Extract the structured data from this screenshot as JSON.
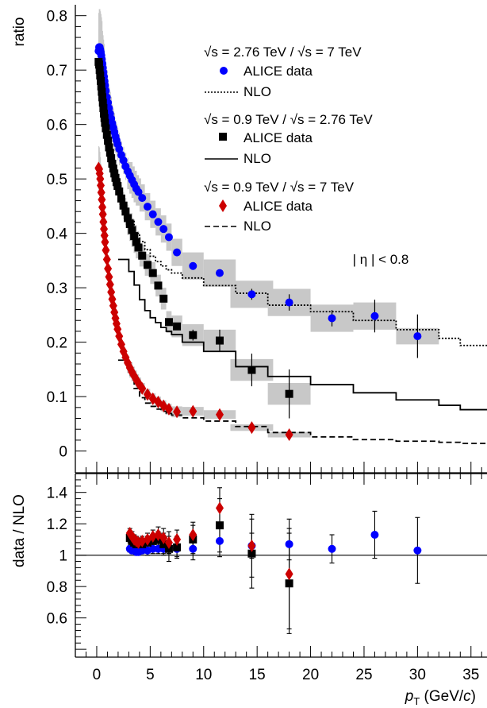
{
  "chart_data": [
    {
      "type": "scatter",
      "panel": "top",
      "ylabel": "ratio",
      "xlim": [
        -2,
        36.5
      ],
      "ylim": [
        -0.04,
        0.82
      ],
      "xticks": [],
      "yticks": [
        0,
        0.1,
        0.2,
        0.3,
        0.4,
        0.5,
        0.6,
        0.7,
        0.8
      ],
      "ytick_labels": [
        "0",
        "0.1",
        "0.2",
        "0.3",
        "0.4",
        "0.5",
        "0.6",
        "0.7",
        "0.8"
      ],
      "annotation": "| η | < 0.8",
      "legend_position": "top-right",
      "legend": [
        {
          "header": "√s = 2.76 TeV / √s = 7 TeV",
          "data_label": "ALICE data",
          "nlo_label": "NLO",
          "marker": "circle",
          "color": "#0000ff",
          "nlo_style": "dotted"
        },
        {
          "header": "√s = 0.9 TeV / √s = 2.76 TeV",
          "data_label": "ALICE data",
          "nlo_label": "NLO",
          "marker": "square",
          "color": "#000000",
          "nlo_style": "solid"
        },
        {
          "header": "√s = 0.9 TeV / √s = 7 TeV",
          "data_label": "ALICE data",
          "nlo_label": "NLO",
          "marker": "diamond",
          "color": "#cc0000",
          "nlo_style": "dashed"
        }
      ],
      "series": [
        {
          "name": "√s = 2.76 TeV / √s = 7 TeV ALICE data",
          "marker": "circle",
          "color": "#0000ff",
          "x": [
            0.175,
            0.225,
            0.275,
            0.325,
            0.375,
            0.425,
            0.475,
            0.525,
            0.575,
            0.625,
            0.675,
            0.725,
            0.775,
            0.85,
            0.95,
            1.05,
            1.15,
            1.25,
            1.35,
            1.45,
            1.55,
            1.65,
            1.75,
            1.85,
            1.95,
            2.1,
            2.3,
            2.5,
            2.7,
            2.9,
            3.1,
            3.3,
            3.5,
            3.7,
            3.9,
            4.25,
            4.75,
            5.25,
            5.75,
            6.25,
            6.75,
            7.5,
            9.0,
            11.5,
            14.5,
            18.0,
            22.0,
            26.0,
            30.0
          ],
          "y": [
            0.735,
            0.742,
            0.742,
            0.738,
            0.733,
            0.727,
            0.72,
            0.712,
            0.704,
            0.696,
            0.688,
            0.68,
            0.672,
            0.662,
            0.65,
            0.64,
            0.63,
            0.62,
            0.611,
            0.602,
            0.594,
            0.586,
            0.578,
            0.571,
            0.564,
            0.555,
            0.544,
            0.534,
            0.523,
            0.514,
            0.506,
            0.498,
            0.49,
            0.482,
            0.476,
            0.465,
            0.449,
            0.435,
            0.421,
            0.408,
            0.393,
            0.365,
            0.34,
            0.327,
            0.288,
            0.273,
            0.244,
            0.248,
            0.211
          ],
          "sys_err": [
            0.07,
            0.07,
            0.07,
            0.07,
            0.07,
            0.07,
            0.07,
            0.06,
            0.06,
            0.06,
            0.06,
            0.05,
            0.05,
            0.05,
            0.05,
            0.04,
            0.04,
            0.04,
            0.04,
            0.035,
            0.035,
            0.035,
            0.03,
            0.03,
            0.03,
            0.03,
            0.025,
            0.025,
            0.025,
            0.025,
            0.025,
            0.025,
            0.025,
            0.025,
            0.025,
            0.025,
            0.025,
            0.025,
            0.025,
            0.025,
            0.025,
            0.025,
            0.025,
            0.025,
            0.025,
            0.025,
            0.025,
            0.025,
            0.015
          ],
          "stat_err": [
            0,
            0,
            0,
            0,
            0,
            0,
            0,
            0,
            0,
            0,
            0,
            0,
            0,
            0,
            0,
            0,
            0,
            0,
            0,
            0,
            0,
            0,
            0,
            0,
            0,
            0,
            0,
            0,
            0,
            0,
            0,
            0,
            0,
            0,
            0,
            0,
            0,
            0,
            0,
            0,
            0,
            0,
            0,
            0,
            0.01,
            0.015,
            0.015,
            0.03,
            0.04
          ]
        },
        {
          "name": "√s = 0.9 TeV / √s = 2.76 TeV ALICE data",
          "marker": "square",
          "color": "#000000",
          "x": [
            0.175,
            0.225,
            0.275,
            0.325,
            0.375,
            0.425,
            0.475,
            0.525,
            0.575,
            0.625,
            0.675,
            0.725,
            0.775,
            0.85,
            0.95,
            1.05,
            1.15,
            1.25,
            1.35,
            1.45,
            1.55,
            1.65,
            1.75,
            1.85,
            1.95,
            2.1,
            2.3,
            2.5,
            2.7,
            2.9,
            3.1,
            3.3,
            3.5,
            3.7,
            3.9,
            4.25,
            4.75,
            5.25,
            5.75,
            6.25,
            6.75,
            7.5,
            9.0,
            11.5,
            14.5,
            18.0
          ],
          "y": [
            0.715,
            0.71,
            0.7,
            0.69,
            0.68,
            0.67,
            0.66,
            0.65,
            0.64,
            0.63,
            0.62,
            0.612,
            0.603,
            0.593,
            0.581,
            0.57,
            0.558,
            0.548,
            0.538,
            0.528,
            0.519,
            0.51,
            0.502,
            0.494,
            0.487,
            0.477,
            0.464,
            0.451,
            0.44,
            0.428,
            0.417,
            0.406,
            0.395,
            0.384,
            0.374,
            0.359,
            0.342,
            0.327,
            0.304,
            0.28,
            0.237,
            0.229,
            0.213,
            0.203,
            0.149,
            0.105
          ],
          "sys_err": [
            0.06,
            0.06,
            0.06,
            0.06,
            0.06,
            0.06,
            0.06,
            0.05,
            0.05,
            0.05,
            0.05,
            0.045,
            0.045,
            0.04,
            0.04,
            0.04,
            0.035,
            0.035,
            0.035,
            0.03,
            0.03,
            0.03,
            0.03,
            0.025,
            0.025,
            0.025,
            0.025,
            0.025,
            0.025,
            0.025,
            0.02,
            0.02,
            0.02,
            0.02,
            0.02,
            0.02,
            0.02,
            0.02,
            0.02,
            0.02,
            0.02,
            0.02,
            0.02,
            0.02,
            0.02,
            0.02
          ],
          "stat_err": [
            0,
            0,
            0,
            0,
            0,
            0,
            0,
            0,
            0,
            0,
            0,
            0,
            0,
            0,
            0,
            0,
            0,
            0,
            0,
            0,
            0,
            0,
            0,
            0,
            0,
            0,
            0,
            0,
            0,
            0,
            0,
            0,
            0,
            0,
            0,
            0,
            0,
            0,
            0,
            0,
            0,
            0,
            0.01,
            0.02,
            0.03,
            0.045
          ]
        },
        {
          "name": "√s = 0.9 TeV / √s = 7 TeV ALICE data",
          "marker": "diamond",
          "color": "#cc0000",
          "x": [
            0.175,
            0.225,
            0.275,
            0.325,
            0.375,
            0.425,
            0.475,
            0.525,
            0.575,
            0.625,
            0.675,
            0.725,
            0.775,
            0.85,
            0.95,
            1.05,
            1.15,
            1.25,
            1.35,
            1.45,
            1.55,
            1.65,
            1.75,
            1.85,
            1.95,
            2.1,
            2.3,
            2.5,
            2.7,
            2.9,
            3.1,
            3.3,
            3.5,
            3.7,
            3.9,
            4.25,
            4.75,
            5.25,
            5.75,
            6.25,
            6.75,
            7.5,
            9.0,
            11.5,
            14.5,
            18.0
          ],
          "y": [
            0.52,
            0.518,
            0.51,
            0.5,
            0.488,
            0.475,
            0.462,
            0.448,
            0.435,
            0.421,
            0.408,
            0.396,
            0.384,
            0.369,
            0.352,
            0.335,
            0.32,
            0.306,
            0.292,
            0.279,
            0.267,
            0.255,
            0.244,
            0.234,
            0.224,
            0.211,
            0.196,
            0.183,
            0.172,
            0.162,
            0.153,
            0.145,
            0.138,
            0.131,
            0.125,
            0.115,
            0.104,
            0.096,
            0.09,
            0.083,
            0.077,
            0.072,
            0.073,
            0.067,
            0.043,
            0.03
          ],
          "sys_err": [
            0.04,
            0.04,
            0.04,
            0.04,
            0.04,
            0.035,
            0.035,
            0.035,
            0.03,
            0.03,
            0.03,
            0.03,
            0.025,
            0.025,
            0.025,
            0.025,
            0.02,
            0.02,
            0.02,
            0.02,
            0.018,
            0.018,
            0.016,
            0.016,
            0.015,
            0.014,
            0.013,
            0.012,
            0.012,
            0.011,
            0.01,
            0.01,
            0.01,
            0.01,
            0.01,
            0.01,
            0.01,
            0.01,
            0.01,
            0.01,
            0.01,
            0.01,
            0.008,
            0.008,
            0.006,
            0.005
          ],
          "stat_err": [
            0,
            0,
            0,
            0,
            0,
            0,
            0,
            0,
            0,
            0,
            0,
            0,
            0,
            0,
            0,
            0,
            0,
            0,
            0,
            0,
            0,
            0,
            0,
            0,
            0,
            0,
            0,
            0,
            0,
            0,
            0,
            0,
            0,
            0,
            0,
            0,
            0,
            0,
            0,
            0,
            0,
            0,
            0,
            0,
            0.005,
            0.006
          ]
        }
      ],
      "nlo_curves": [
        {
          "name": "NLO √s = 2.76 TeV / √s = 7 TeV",
          "style": "dotted",
          "color": "#000000",
          "edges": [
            3,
            3.5,
            4,
            4.5,
            5,
            5.5,
            6,
            6.5,
            7,
            8,
            10,
            13,
            16,
            20,
            24,
            28,
            32,
            34,
            36.5
          ],
          "values": [
            0.425,
            0.4,
            0.385,
            0.37,
            0.358,
            0.348,
            0.34,
            0.333,
            0.327,
            0.318,
            0.304,
            0.29,
            0.268,
            0.256,
            0.24,
            0.223,
            0.207,
            0.194
          ]
        },
        {
          "name": "NLO √s = 0.9 TeV / √s = 2.76 TeV",
          "style": "solid",
          "color": "#000000",
          "edges": [
            2,
            3,
            3.5,
            4,
            4.5,
            5,
            5.5,
            6,
            6.5,
            7,
            8,
            10,
            13,
            16,
            20,
            24,
            28,
            32,
            34,
            36.5
          ],
          "values": [
            0.352,
            0.33,
            0.305,
            0.278,
            0.258,
            0.245,
            0.236,
            0.227,
            0.22,
            0.214,
            0.2,
            0.183,
            0.155,
            0.137,
            0.122,
            0.107,
            0.094,
            0.084,
            0.076
          ]
        },
        {
          "name": "NLO √s = 0.9 TeV / √s = 7 TeV",
          "style": "dashed",
          "color": "#000000",
          "edges": [
            2,
            3,
            3.5,
            4,
            4.5,
            5,
            5.5,
            6,
            6.5,
            7,
            8,
            10,
            13,
            16,
            20,
            24,
            28,
            32,
            34,
            36.5
          ],
          "values": [
            0.167,
            0.14,
            0.115,
            0.098,
            0.088,
            0.082,
            0.077,
            0.073,
            0.069,
            0.066,
            0.061,
            0.055,
            0.045,
            0.034,
            0.026,
            0.021,
            0.018,
            0.016,
            0.014
          ]
        }
      ]
    },
    {
      "type": "scatter",
      "panel": "bottom",
      "xlabel": "p_T (GeV/c)",
      "ylabel": "data / NLO",
      "xlim": [
        -2,
        36.5
      ],
      "ylim": [
        0.35,
        1.52
      ],
      "xticks": [
        0,
        5,
        10,
        15,
        20,
        25,
        30,
        35
      ],
      "xtick_labels": [
        "0",
        "5",
        "10",
        "15",
        "20",
        "25",
        "30",
        "35"
      ],
      "yticks": [
        0.6,
        0.8,
        1.0,
        1.2,
        1.4
      ],
      "ytick_labels": [
        "0.6",
        "0.8",
        "1",
        "1.2",
        "1.4"
      ],
      "reference_line": 1.0,
      "series": [
        {
          "name": "√s = 2.76 TeV / √s = 7 TeV",
          "marker": "circle",
          "color": "#0000ff",
          "x": [
            3.1,
            3.3,
            3.5,
            3.7,
            3.9,
            4.25,
            4.75,
            5.25,
            5.75,
            6.25,
            6.75,
            7.5,
            9.0,
            11.5,
            14.5,
            18.0,
            22.0,
            26.0,
            30.0
          ],
          "y": [
            1.04,
            1.03,
            1.03,
            1.02,
            1.02,
            1.03,
            1.03,
            1.04,
            1.04,
            1.04,
            1.05,
            1.04,
            1.04,
            1.09,
            1.06,
            1.07,
            1.04,
            1.13,
            1.03
          ],
          "err": [
            0.02,
            0.02,
            0.02,
            0.02,
            0.02,
            0.02,
            0.03,
            0.03,
            0.03,
            0.03,
            0.04,
            0.05,
            0.07,
            0.1,
            0.08,
            0.1,
            0.09,
            0.15,
            0.21
          ]
        },
        {
          "name": "√s = 0.9 TeV / √s = 2.76 TeV",
          "marker": "square",
          "color": "#000000",
          "x": [
            3.1,
            3.3,
            3.5,
            3.7,
            3.9,
            4.25,
            4.75,
            5.25,
            5.75,
            6.25,
            6.75,
            7.5,
            9.0,
            11.5,
            14.5,
            18.0
          ],
          "y": [
            1.11,
            1.09,
            1.08,
            1.07,
            1.07,
            1.07,
            1.08,
            1.09,
            1.1,
            1.07,
            1.04,
            1.05,
            1.1,
            1.19,
            1.01,
            0.82
          ],
          "err": [
            0.03,
            0.03,
            0.03,
            0.03,
            0.03,
            0.03,
            0.04,
            0.04,
            0.05,
            0.07,
            0.08,
            0.07,
            0.09,
            0.17,
            0.22,
            0.32
          ]
        },
        {
          "name": "√s = 0.9 TeV / √s = 7 TeV",
          "marker": "diamond",
          "color": "#cc0000",
          "x": [
            3.1,
            3.3,
            3.5,
            3.7,
            3.9,
            4.25,
            4.75,
            5.25,
            5.75,
            6.25,
            6.75,
            7.5,
            9.0,
            11.5,
            14.5,
            18.0
          ],
          "y": [
            1.14,
            1.12,
            1.1,
            1.09,
            1.08,
            1.09,
            1.1,
            1.12,
            1.13,
            1.11,
            1.08,
            1.1,
            1.13,
            1.3,
            1.06,
            0.88
          ],
          "err": [
            0.03,
            0.03,
            0.03,
            0.03,
            0.03,
            0.03,
            0.04,
            0.04,
            0.05,
            0.06,
            0.07,
            0.06,
            0.08,
            0.13,
            0.2,
            0.35
          ]
        }
      ]
    }
  ]
}
